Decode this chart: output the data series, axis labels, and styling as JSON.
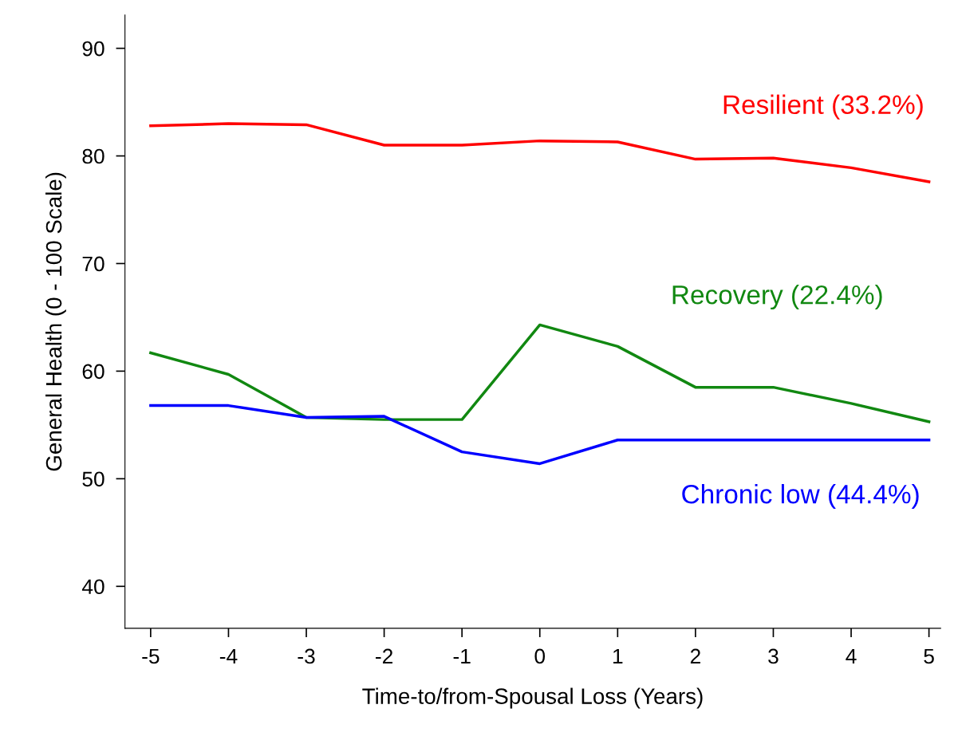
{
  "chart_data": {
    "type": "line",
    "xlabel": "Time-to/from-Spousal Loss (Years)",
    "ylabel": "General Health (0 - 100 Scale)",
    "x": [
      -5,
      -4,
      -3,
      -2,
      -1,
      0,
      1,
      2,
      3,
      4,
      5
    ],
    "series": [
      {
        "name": "Resilient (33.2%)",
        "color": "#ff0000",
        "values": [
          82.8,
          83.0,
          82.9,
          81.0,
          81.0,
          81.4,
          81.3,
          79.7,
          79.8,
          78.9,
          77.6
        ]
      },
      {
        "name": "Recovery (22.4%)",
        "color": "#118811",
        "values": [
          61.7,
          59.7,
          55.7,
          55.5,
          55.5,
          64.3,
          62.3,
          58.5,
          58.5,
          57.0,
          55.3
        ]
      },
      {
        "name": "Chronic low (44.4%)",
        "color": "#0000ff",
        "values": [
          56.8,
          56.8,
          55.7,
          55.8,
          52.5,
          51.4,
          53.6,
          53.6,
          53.6,
          53.6,
          53.6
        ]
      }
    ],
    "xlim": [
      -5.33,
      5.15
    ],
    "ylim": [
      36.1,
      93.1
    ],
    "xticks": [
      -5,
      -4,
      -3,
      -2,
      -1,
      0,
      1,
      2,
      3,
      4,
      5
    ],
    "yticks": [
      40,
      50,
      60,
      70,
      80,
      90
    ],
    "grid": false,
    "legend": false,
    "marker": "none",
    "line_style": "solid"
  }
}
